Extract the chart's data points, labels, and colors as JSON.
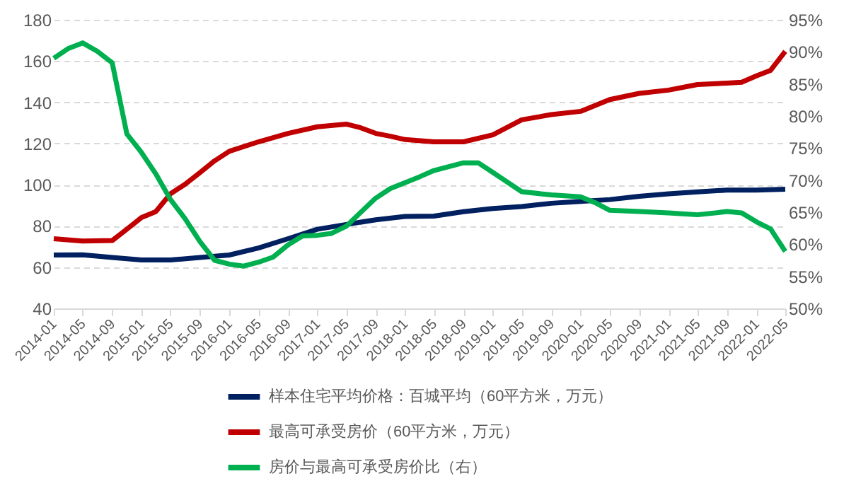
{
  "chart_data": {
    "type": "line",
    "xlim": [
      "2014-01",
      "2022-05"
    ],
    "xticks": [
      "2014-01",
      "2014-05",
      "2014-09",
      "2015-01",
      "2015-05",
      "2015-09",
      "2016-01",
      "2016-05",
      "2016-09",
      "2017-01",
      "2017-05",
      "2017-09",
      "2018-01",
      "2018-05",
      "2018-09",
      "2019-01",
      "2019-05",
      "2019-09",
      "2020-01",
      "2020-05",
      "2020-09",
      "2021-01",
      "2021-05",
      "2021-09",
      "2022-01",
      "2022-05"
    ],
    "ylim": [
      40,
      180
    ],
    "yticks": [
      40,
      60,
      80,
      100,
      120,
      140,
      160,
      180
    ],
    "y2lim": [
      50,
      95
    ],
    "y2ticks": [
      {
        "value": 50,
        "label": "50%"
      },
      {
        "value": 55,
        "label": "55%"
      },
      {
        "value": 60,
        "label": "60%"
      },
      {
        "value": 65,
        "label": "65%"
      },
      {
        "value": 70,
        "label": "70%"
      },
      {
        "value": 75,
        "label": "75%"
      },
      {
        "value": 80,
        "label": "80%"
      },
      {
        "value": 85,
        "label": "85%"
      },
      {
        "value": 90,
        "label": "90%"
      },
      {
        "value": 95,
        "label": "95%"
      }
    ],
    "grid": "y",
    "legend": "bottom",
    "marker": "none",
    "line_style": "solid",
    "series": [
      {
        "name": "样本住宅平均价格：百城平均（60平方米，万元）",
        "color": "#002060",
        "x": [
          "2014-01",
          "2014-05",
          "2014-09",
          "2015-01",
          "2015-05",
          "2015-09",
          "2016-01",
          "2016-05",
          "2016-09",
          "2017-01",
          "2017-05",
          "2017-09",
          "2018-01",
          "2018-05",
          "2018-09",
          "2019-01",
          "2019-05",
          "2019-09",
          "2020-01",
          "2020-05",
          "2020-09",
          "2021-01",
          "2021-05",
          "2021-09",
          "2022-01",
          "2022-05"
        ],
        "values": [
          65.9,
          66.0,
          64.7,
          63.5,
          63.5,
          64.7,
          65.9,
          69.3,
          73.8,
          78.4,
          80.7,
          83.0,
          84.6,
          84.8,
          86.9,
          88.5,
          89.4,
          91.0,
          91.9,
          92.8,
          94.4,
          95.6,
          96.5,
          97.4,
          97.4,
          97.8
        ]
      },
      {
        "name": "最高可承受房价（60平方米，万元）",
        "color": "#c00000",
        "x": [
          "2014-01",
          "2014-05",
          "2014-09",
          "2014-11",
          "2015-01",
          "2015-03",
          "2015-05",
          "2015-07",
          "2015-09",
          "2015-11",
          "2016-01",
          "2016-05",
          "2016-09",
          "2017-01",
          "2017-05",
          "2017-07",
          "2017-09",
          "2017-11",
          "2018-01",
          "2018-05",
          "2018-09",
          "2019-01",
          "2019-05",
          "2019-09",
          "2020-01",
          "2020-05",
          "2020-09",
          "2021-01",
          "2021-05",
          "2021-09",
          "2021-11",
          "2022-01",
          "2022-03",
          "2022-05"
        ],
        "values": [
          73.8,
          72.7,
          72.9,
          78.4,
          84.1,
          86.9,
          95.6,
          100.2,
          105.9,
          111.6,
          116.2,
          120.8,
          124.9,
          128.1,
          129.4,
          127.6,
          124.9,
          123.5,
          121.9,
          120.8,
          120.8,
          124.2,
          131.5,
          134.0,
          135.6,
          141.3,
          144.3,
          145.9,
          148.6,
          149.3,
          149.7,
          152.8,
          155.5,
          164.7
        ]
      },
      {
        "name": "房价与最高可承受房价比（右）",
        "color": "#00b050",
        "axis": "y2",
        "x": [
          "2014-01",
          "2014-03",
          "2014-05",
          "2014-07",
          "2014-09",
          "2014-11",
          "2015-01",
          "2015-03",
          "2015-05",
          "2015-07",
          "2015-09",
          "2015-11",
          "2016-01",
          "2016-03",
          "2016-05",
          "2016-07",
          "2016-09",
          "2016-11",
          "2017-01",
          "2017-03",
          "2017-05",
          "2017-07",
          "2017-09",
          "2017-11",
          "2018-01",
          "2018-03",
          "2018-05",
          "2018-09",
          "2018-11",
          "2019-01",
          "2019-05",
          "2019-09",
          "2020-01",
          "2020-03",
          "2020-05",
          "2020-09",
          "2021-01",
          "2021-05",
          "2021-09",
          "2021-11",
          "2022-01",
          "2022-03",
          "2022-05"
        ],
        "values": [
          89.0,
          90.5,
          91.4,
          90.1,
          88.3,
          77.2,
          74.3,
          71.0,
          67.0,
          64.0,
          60.4,
          57.5,
          56.9,
          56.6,
          57.2,
          58.0,
          59.9,
          61.3,
          61.4,
          61.7,
          62.8,
          65.0,
          67.2,
          68.7,
          69.6,
          70.5,
          71.5,
          72.7,
          72.7,
          71.2,
          68.2,
          67.7,
          67.4,
          66.5,
          65.3,
          65.1,
          64.9,
          64.6,
          65.1,
          64.9,
          63.5,
          62.4,
          58.9
        ]
      }
    ]
  }
}
